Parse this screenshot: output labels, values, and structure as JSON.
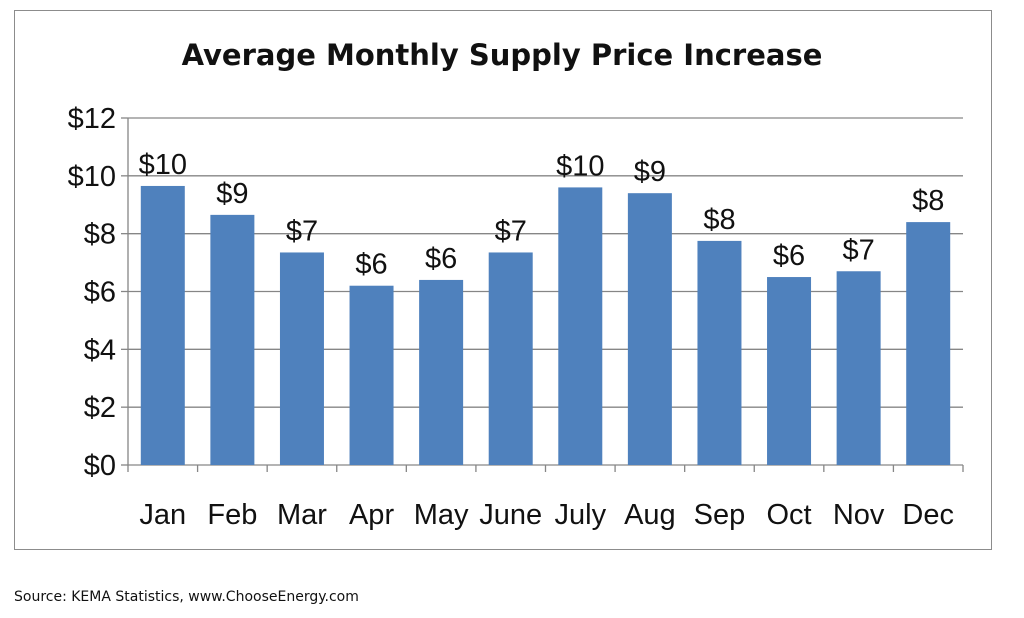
{
  "chart_data": {
    "type": "bar",
    "title": "Average Monthly Supply Price Increase",
    "categories": [
      "Jan",
      "Feb",
      "Mar",
      "Apr",
      "May",
      "June",
      "July",
      "Aug",
      "Sep",
      "Oct",
      "Nov",
      "Dec"
    ],
    "values": [
      9.65,
      8.65,
      7.35,
      6.2,
      6.4,
      7.35,
      9.6,
      9.4,
      7.75,
      6.5,
      6.7,
      8.4
    ],
    "data_labels": [
      "$10",
      "$9",
      "$7",
      "$6",
      "$6",
      "$7",
      "$10",
      "$9",
      "$8",
      "$6",
      "$7",
      "$8"
    ],
    "y_ticks": [
      "$0",
      "$2",
      "$4",
      "$6",
      "$8",
      "$10",
      "$12"
    ],
    "y_tick_values": [
      0,
      2,
      4,
      6,
      8,
      10,
      12
    ],
    "ylim": [
      0,
      12
    ],
    "grid": true,
    "bar_color": "#4f81bd"
  },
  "source_text": "Source: KEMA Statistics, www.ChooseEnergy.com"
}
